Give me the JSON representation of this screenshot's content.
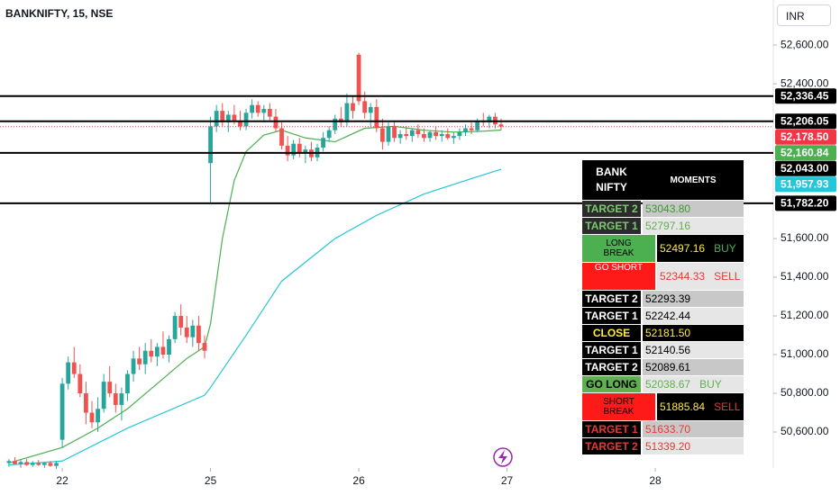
{
  "chart_data": {
    "type": "candlestick",
    "title": "BANKNIFTY, 15, NSE",
    "currency": "INR",
    "up_color": "#26a69a",
    "down_color": "#ef5350",
    "xlim": [
      -1.5,
      128.9
    ],
    "xticks": [
      {
        "value": 9,
        "label": "22"
      },
      {
        "value": 34,
        "label": "25"
      },
      {
        "value": 59,
        "label": "26"
      },
      {
        "value": 84,
        "label": "27"
      },
      {
        "value": 109,
        "label": "28"
      }
    ],
    "ylim": [
      50414,
      52833
    ],
    "yticks": [
      {
        "value": 52600,
        "label": "52,600.00"
      },
      {
        "value": 52400,
        "label": "52,400.00"
      },
      {
        "value": 51600,
        "label": "51,600.00"
      },
      {
        "value": 51400,
        "label": "51,400.00"
      },
      {
        "value": 51200,
        "label": "51,200.00"
      },
      {
        "value": 51000,
        "label": "51,000.00"
      },
      {
        "value": 50800,
        "label": "50,800.00"
      },
      {
        "value": 50600,
        "label": "50,600.00"
      }
    ],
    "ohlc": [
      [
        50440,
        50460,
        50420,
        50450
      ],
      [
        50450,
        50470,
        50430,
        50435
      ],
      [
        50435,
        50455,
        50415,
        50445
      ],
      [
        50445,
        50460,
        50425,
        50430
      ],
      [
        50430,
        50450,
        50420,
        50440
      ],
      [
        50440,
        50455,
        50425,
        50430
      ],
      [
        50430,
        50445,
        50415,
        50440
      ],
      [
        50440,
        50450,
        50420,
        50425
      ],
      [
        50425,
        50450,
        50410,
        50440
      ],
      [
        50560,
        50880,
        50520,
        50850
      ],
      [
        50850,
        50990,
        50820,
        50960
      ],
      [
        50960,
        51040,
        50880,
        50900
      ],
      [
        50900,
        50950,
        50780,
        50800
      ],
      [
        50800,
        50860,
        50640,
        50700
      ],
      [
        50700,
        50760,
        50620,
        50650
      ],
      [
        50650,
        50780,
        50600,
        50720
      ],
      [
        50720,
        50900,
        50700,
        50860
      ],
      [
        50860,
        50940,
        50780,
        50800
      ],
      [
        50800,
        50850,
        50700,
        50740
      ],
      [
        50740,
        50830,
        50660,
        50800
      ],
      [
        50800,
        50920,
        50760,
        50900
      ],
      [
        50900,
        51020,
        50860,
        50980
      ],
      [
        50980,
        51040,
        50920,
        50950
      ],
      [
        50950,
        51060,
        50900,
        51020
      ],
      [
        51020,
        51080,
        50960,
        50990
      ],
      [
        50990,
        51060,
        50940,
        51040
      ],
      [
        51040,
        51120,
        50980,
        51000
      ],
      [
        51000,
        51100,
        50960,
        51080
      ],
      [
        51080,
        51220,
        51060,
        51200
      ],
      [
        51200,
        51260,
        51100,
        51140
      ],
      [
        51140,
        51200,
        51060,
        51090
      ],
      [
        51090,
        51180,
        51040,
        51150
      ],
      [
        51150,
        51200,
        51020,
        51060
      ],
      [
        51060,
        51100,
        50980,
        51020
      ],
      [
        51990,
        52230,
        51780,
        52180
      ],
      [
        52180,
        52290,
        52150,
        52260
      ],
      [
        52260,
        52300,
        52180,
        52200
      ],
      [
        52200,
        52260,
        52150,
        52240
      ],
      [
        52240,
        52290,
        52190,
        52210
      ],
      [
        52210,
        52260,
        52160,
        52180
      ],
      [
        52180,
        52270,
        52160,
        52250
      ],
      [
        52250,
        52320,
        52220,
        52290
      ],
      [
        52290,
        52310,
        52230,
        52250
      ],
      [
        52250,
        52290,
        52200,
        52270
      ],
      [
        52270,
        52300,
        52210,
        52230
      ],
      [
        52230,
        52270,
        52150,
        52170
      ],
      [
        52170,
        52200,
        52060,
        52080
      ],
      [
        52080,
        52130,
        52000,
        52030
      ],
      [
        52030,
        52110,
        52010,
        52090
      ],
      [
        52090,
        52120,
        52020,
        52040
      ],
      [
        52040,
        52080,
        51990,
        52060
      ],
      [
        52060,
        52100,
        52000,
        52020
      ],
      [
        52020,
        52090,
        52000,
        52070
      ],
      [
        52070,
        52150,
        52050,
        52120
      ],
      [
        52120,
        52180,
        52100,
        52160
      ],
      [
        52160,
        52240,
        52140,
        52220
      ],
      [
        52220,
        52280,
        52180,
        52200
      ],
      [
        52200,
        52350,
        52180,
        52300
      ],
      [
        52300,
        52340,
        52220,
        52260
      ],
      [
        52550,
        52560,
        52290,
        52310
      ],
      [
        52310,
        52360,
        52220,
        52250
      ],
      [
        52250,
        52300,
        52180,
        52280
      ],
      [
        52280,
        52320,
        52150,
        52170
      ],
      [
        52170,
        52220,
        52060,
        52100
      ],
      [
        52100,
        52200,
        52080,
        52180
      ],
      [
        52180,
        52210,
        52100,
        52120
      ],
      [
        52120,
        52160,
        52090,
        52140
      ],
      [
        52140,
        52180,
        52110,
        52130
      ],
      [
        52130,
        52170,
        52100,
        52160
      ],
      [
        52160,
        52190,
        52120,
        52140
      ],
      [
        52140,
        52170,
        52100,
        52120
      ],
      [
        52120,
        52160,
        52100,
        52150
      ],
      [
        52150,
        52180,
        52110,
        52130
      ],
      [
        52130,
        52160,
        52100,
        52140
      ],
      [
        52140,
        52170,
        52110,
        52120
      ],
      [
        52120,
        52150,
        52090,
        52130
      ],
      [
        52130,
        52170,
        52110,
        52150
      ],
      [
        52150,
        52190,
        52130,
        52170
      ],
      [
        52170,
        52200,
        52140,
        52160
      ],
      [
        52160,
        52220,
        52150,
        52210
      ],
      [
        52210,
        52250,
        52180,
        52200
      ],
      [
        52200,
        52240,
        52170,
        52230
      ],
      [
        52230,
        52250,
        52170,
        52190
      ],
      [
        52190,
        52220,
        52160,
        52178.5
      ]
    ],
    "series": [
      {
        "color": "#4caf50",
        "x": [
          0,
          9,
          15,
          20,
          25,
          30,
          33,
          34,
          36,
          38,
          40,
          43,
          46,
          50,
          55,
          60,
          65,
          70,
          75,
          80,
          83
        ],
        "values": [
          50440,
          50520,
          50620,
          50720,
          50850,
          50980,
          51040,
          51160,
          51600,
          51900,
          52050,
          52135,
          52160,
          52120,
          52100,
          52170,
          52180,
          52160,
          52150,
          52155,
          52160.84
        ],
        "label": "52,160.84"
      },
      {
        "color": "#26c6da",
        "x": [
          0,
          9,
          20,
          33,
          34,
          40,
          46,
          55,
          62,
          70,
          78,
          83
        ],
        "values": [
          50430,
          50450,
          50620,
          50790,
          50830,
          51100,
          51380,
          51600,
          51720,
          51830,
          51910,
          51957.93
        ],
        "label": "51,957.93"
      }
    ],
    "levels": [
      {
        "value": 52336.45,
        "label": "52,336.45"
      },
      {
        "value": 52206.05,
        "label": "52,206.05"
      },
      {
        "value": 52043,
        "label": "52,043.00"
      },
      {
        "value": 51782.2,
        "label": "51,782.20"
      }
    ],
    "last_price": {
      "value": 52178.5,
      "label": "52,178.50",
      "color": "#f23645"
    }
  },
  "table": {
    "header": [
      "BANK NIFTY",
      "MOMENTS"
    ],
    "rows": [
      [
        "TARGET 2",
        "53043.80"
      ],
      [
        "TARGET 1",
        "52797.16"
      ],
      [
        "LONG BREAK",
        "52497.16",
        "BUY"
      ],
      [
        "GO SHORT",
        "52344.33",
        "SELL"
      ],
      [
        "TARGET 2",
        "52293.39"
      ],
      [
        "TARGET 1",
        "52242.44"
      ],
      [
        "CLOSE",
        "52181.50"
      ],
      [
        "TARGET 1",
        "52140.56"
      ],
      [
        "TARGET 2",
        "52089.61"
      ],
      [
        "GO LONG",
        "52038.67",
        "BUY"
      ],
      [
        "SHORT BREAK",
        "51885.84",
        "SELL"
      ],
      [
        "TARGET 1",
        "51633.70"
      ],
      [
        "TARGET 2",
        "51339.20"
      ]
    ]
  }
}
